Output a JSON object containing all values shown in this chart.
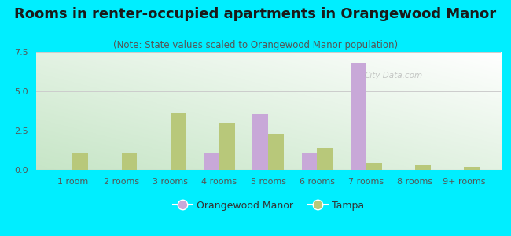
{
  "title": "Rooms in renter-occupied apartments in Orangewood Manor",
  "subtitle": "(Note: State values scaled to Orangewood Manor population)",
  "categories": [
    "1 room",
    "2 rooms",
    "3 rooms",
    "4 rooms",
    "5 rooms",
    "6 rooms",
    "7 rooms",
    "8 rooms",
    "9+ rooms"
  ],
  "orangewood": [
    0,
    0,
    0,
    1.1,
    3.55,
    1.1,
    6.8,
    0,
    0
  ],
  "tampa": [
    1.1,
    1.1,
    3.6,
    3.0,
    2.3,
    1.4,
    0.45,
    0.28,
    0.18
  ],
  "orangewood_color": "#c8a8d8",
  "tampa_color": "#b8c87a",
  "background_outer": "#00eeff",
  "ylim": [
    0,
    7.5
  ],
  "yticks": [
    0,
    2.5,
    5,
    7.5
  ],
  "title_fontsize": 13,
  "subtitle_fontsize": 8.5,
  "tick_fontsize": 8,
  "legend_fontsize": 9,
  "bar_width": 0.32
}
